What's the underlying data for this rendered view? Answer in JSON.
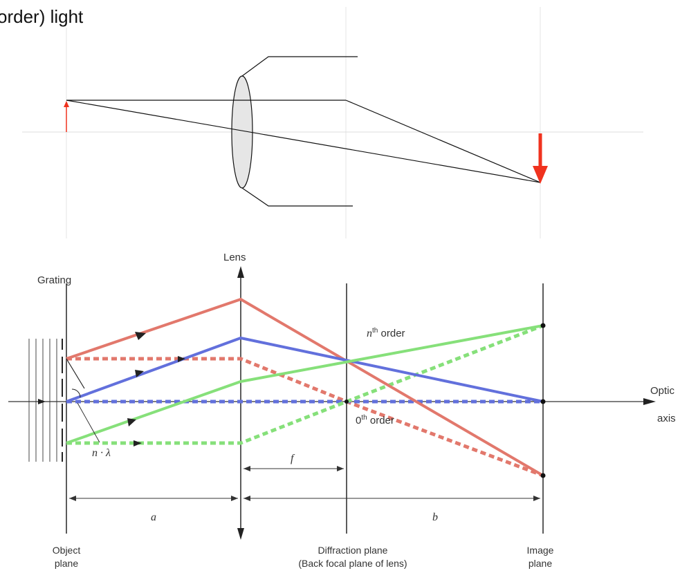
{
  "top": {
    "caption": "order) light"
  },
  "bottom": {
    "labels": {
      "lens": "Lens",
      "grating": "Grating",
      "nth_order_base": "n",
      "nth_order_sup": "th",
      "nth_order_word": " order",
      "zeroth_order_base": "0",
      "zeroth_order_sup": "th",
      "zeroth_order_word": " order",
      "optic": "Optic",
      "axis": "axis",
      "n_lambda": "n · λ",
      "f": "f",
      "a": "a",
      "b": "b",
      "object_plane_1": "Object",
      "object_plane_2": "plane",
      "diffraction_plane_1": "Diffraction plane",
      "diffraction_plane_2": "(Back focal plane of lens)",
      "image_plane_1": "Image",
      "image_plane_2": "plane"
    },
    "colors": {
      "red_ray": "#e2786c",
      "blue_ray": "#6270dc",
      "green_ray": "#86e07a",
      "arrow_red": "#f0321e"
    }
  }
}
